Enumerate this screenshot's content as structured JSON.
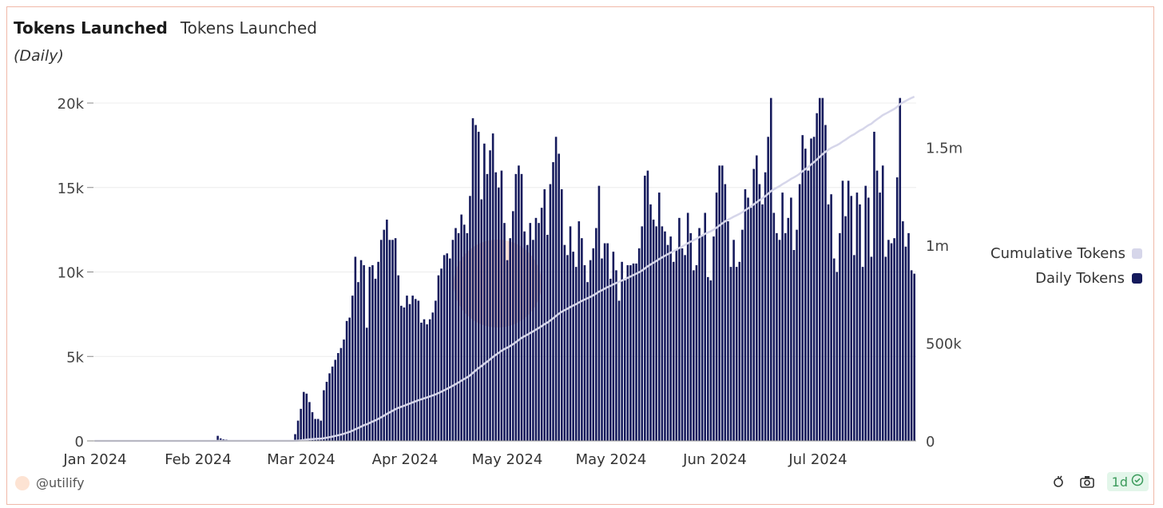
{
  "header": {
    "title": "Tokens Launched",
    "subtitle": "Tokens Launched",
    "period": "(Daily)"
  },
  "legend": {
    "items": [
      {
        "label": "Cumulative Tokens",
        "color": "#d6d6ea"
      },
      {
        "label": "Daily Tokens",
        "color": "#151a5c"
      }
    ]
  },
  "footer": {
    "author": "@utilify",
    "refresh_label": "1d",
    "icons": [
      "chart-type-icon",
      "camera-icon",
      "check-circle-icon"
    ]
  },
  "colors": {
    "bar": "#151a5c",
    "line": "#d6d6ea",
    "grid": "#ececec",
    "border": "#f0b8a8",
    "watermark": "#f4b8a4"
  },
  "chart_data": {
    "type": "bar",
    "x_tick_labels": [
      "Jan 2024",
      "Feb 2024",
      "Mar 2024",
      "Apr 2024",
      "May 2024",
      "May 2024",
      "Jun 2024",
      "Jul 2024"
    ],
    "y_left": {
      "ticks": [
        "0",
        "5k",
        "10k",
        "15k",
        "20k"
      ],
      "range": [
        0,
        20000
      ]
    },
    "y_right": {
      "ticks": [
        "0",
        "500k",
        "1m",
        "1.5m"
      ],
      "range": [
        0,
        1760000
      ]
    },
    "grid": true,
    "legend_position": "right",
    "series": [
      {
        "name": "Daily Tokens",
        "type": "bar",
        "axis": "left",
        "values": [
          0,
          0,
          0,
          0,
          0,
          0,
          0,
          0,
          0,
          0,
          0,
          0,
          0,
          0,
          0,
          0,
          0,
          0,
          0,
          0,
          0,
          0,
          0,
          0,
          0,
          0,
          0,
          0,
          0,
          0,
          0,
          0,
          0,
          0,
          0,
          0,
          0,
          0,
          0,
          0,
          0,
          0,
          0,
          300,
          150,
          100,
          80,
          0,
          0,
          0,
          0,
          0,
          0,
          0,
          0,
          0,
          0,
          0,
          0,
          0,
          0,
          0,
          0,
          0,
          0,
          0,
          0,
          0,
          0,
          0,
          400,
          1200,
          1900,
          2900,
          2800,
          2300,
          1700,
          1300,
          1300,
          1200,
          3000,
          3500,
          4000,
          4400,
          4800,
          5200,
          5500,
          6000,
          7100,
          7300,
          8600,
          10900,
          9400,
          10700,
          10400,
          6700,
          10300,
          10400,
          9600,
          10600,
          11900,
          12500,
          13100,
          11900,
          11900,
          12000,
          9800,
          8000,
          7900,
          8600,
          8100,
          8600,
          8400,
          8300,
          7000,
          7200,
          6900,
          7200,
          7600,
          8300,
          9800,
          10200,
          11000,
          11100,
          10800,
          11900,
          12600,
          12300,
          13400,
          12800,
          12300,
          14500,
          19100,
          18700,
          18300,
          14300,
          17600,
          15800,
          17200,
          18200,
          15900,
          15000,
          16000,
          12900,
          10700,
          12000,
          13600,
          15800,
          16300,
          15800,
          12400,
          11600,
          12900,
          11900,
          13200,
          12900,
          13800,
          14900,
          12200,
          15200,
          16500,
          18000,
          17000,
          14900,
          11600,
          11000,
          12700,
          11200,
          10300,
          13000,
          12000,
          10400,
          9400,
          10700,
          11400,
          12600,
          15100,
          10800,
          11700,
          11700,
          9600,
          11200,
          10100,
          8300,
          10600,
          9500,
          10400,
          10400,
          10500,
          10500,
          11400,
          12700,
          15700,
          16000,
          14000,
          13100,
          12700,
          14700,
          12700,
          12400,
          11600,
          12100,
          10600,
          11300,
          13200,
          11400,
          11000,
          13500,
          12300,
          10100,
          10400,
          12600,
          12200,
          13500,
          9700,
          9500,
          12100,
          14700,
          16300,
          16300,
          15200,
          13000,
          10300,
          11900,
          10300,
          10600,
          12500,
          14900,
          14400,
          13800,
          16100,
          16900,
          15200,
          14000,
          15900,
          18000,
          20300,
          13500,
          12300,
          11900,
          14700,
          12300,
          13200,
          14400,
          11300,
          12500,
          15200,
          18100,
          17300,
          16000,
          17900,
          18000,
          19400,
          20300,
          20300,
          18700,
          14000,
          14600,
          10800,
          10000,
          12300,
          15400,
          13300,
          15400,
          14500,
          11000,
          14700,
          14000,
          10300,
          15100,
          14400,
          10900,
          18300,
          16000,
          14700,
          16300,
          10900,
          11900,
          11700,
          12000,
          15600,
          20300,
          13000,
          11500,
          12300,
          10100,
          9900
        ]
      },
      {
        "name": "Cumulative Tokens",
        "type": "line",
        "axis": "right",
        "values_end": 1760000
      }
    ]
  }
}
